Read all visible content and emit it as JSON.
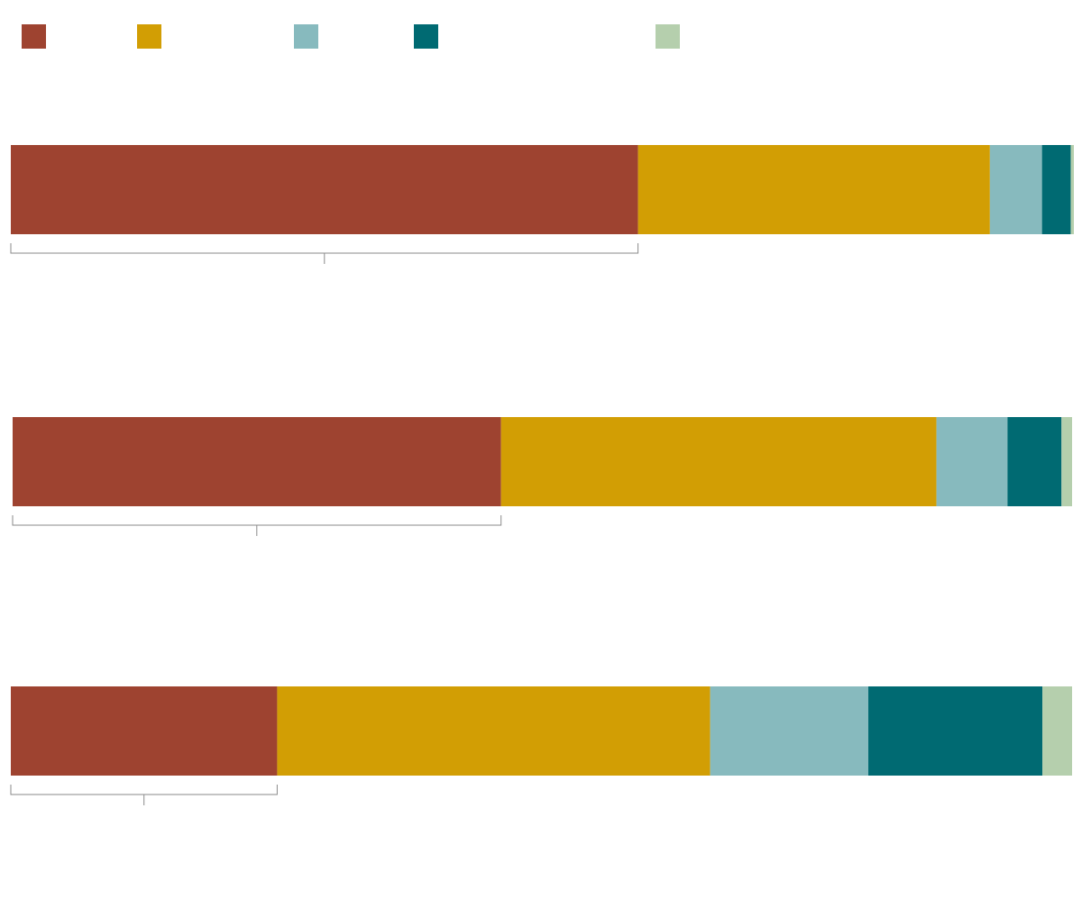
{
  "chart_data": {
    "type": "bar",
    "orientation": "horizontal",
    "stacked": true,
    "normalized": true,
    "legend_position": "top",
    "title": "",
    "xlabel": "",
    "ylabel": "",
    "categories": [
      "",
      "",
      ""
    ],
    "series": [
      {
        "color": "#9e4330",
        "values": [
          59.0,
          46.1,
          25.1
        ]
      },
      {
        "color": "#d29e04",
        "values": [
          33.1,
          41.1,
          40.8
        ]
      },
      {
        "color": "#87babe",
        "values": [
          4.9,
          6.7,
          14.9
        ]
      },
      {
        "color": "#006a72",
        "values": [
          2.7,
          5.1,
          16.4
        ]
      },
      {
        "color": "#b5cfad",
        "values": [
          0.3,
          1.0,
          2.8
        ]
      }
    ],
    "brackets": [
      {
        "bar": 0,
        "series_from": 0,
        "series_to": 0
      },
      {
        "bar": 1,
        "series_from": 0,
        "series_to": 0
      },
      {
        "bar": 2,
        "series_from": 0,
        "series_to": 0
      }
    ]
  }
}
